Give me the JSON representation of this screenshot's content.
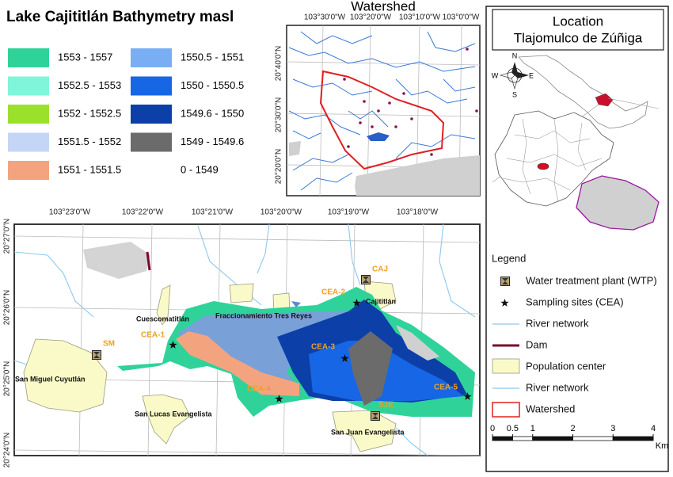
{
  "bathymetry_legend": {
    "title": "Lake Cajititlán Bathymetry masl",
    "items": [
      {
        "label": "1553 - 1557",
        "color": "#2fd39a"
      },
      {
        "label": "1552.5 - 1553",
        "color": "#80f5da"
      },
      {
        "label": "1552 - 1552.5",
        "color": "#9be12c"
      },
      {
        "label": "1551.5 - 1552",
        "color": "#c5d5f6"
      },
      {
        "label": "1551 - 1551.5",
        "color": "#f3a47f"
      },
      {
        "label": "1550.5 - 1551",
        "color": "#7aaef4"
      },
      {
        "label": "1550 - 1550.5",
        "color": "#1766e6"
      },
      {
        "label": "1549.6 - 1550",
        "color": "#0c40a8"
      },
      {
        "label": "1549 - 1549.6",
        "color": "#6b6b6b"
      },
      {
        "label": "0 - 1549"
      }
    ]
  },
  "watershed_inset": {
    "title": "Watershed",
    "x_labels": [
      "103°30'0\"W",
      "103°20'0\"W",
      "103°10'0\"W",
      "103°0'0\"W"
    ],
    "y_labels": [
      "20°40'0\"N",
      "20°30'0\"N",
      "20°20'0\"N"
    ]
  },
  "location_inset": {
    "title": [
      "Location",
      "Tlajomulco de Zúñiga"
    ],
    "compass": [
      "N",
      "E",
      "S",
      "W"
    ]
  },
  "main_map": {
    "x_labels": [
      "103°23'0\"W",
      "103°22'0\"W",
      "103°21'0\"W",
      "103°20'0\"W",
      "103°19'0\"W",
      "103°18'0\"W"
    ],
    "y_labels": [
      "20°27'0\"N",
      "20°26'0\"N",
      "20°25'0\"N",
      "20°24'0\"N"
    ],
    "places": [
      "Cuescomatitlán",
      "Fraccionamiento Tres Reyes",
      "Cajititlán",
      "San Miguel Cuyutlán",
      "San Lucas Evangelista",
      "San Juan Evangelista"
    ],
    "sites": [
      "CAJ",
      "CEA-2",
      "CEA-1",
      "SM",
      "CEA-3",
      "CEA-4",
      "CEA-5",
      "SJE"
    ]
  },
  "legend": {
    "title": "Legend",
    "items": [
      "Water treatment plant (WTP)",
      "Sampling sites (CEA)",
      "River network",
      "Dam",
      "Population center",
      "River network",
      "Watershed"
    ]
  },
  "scale_bar": {
    "ticks": [
      0,
      0.5,
      1,
      2,
      3,
      4
    ],
    "unit": "Km"
  }
}
